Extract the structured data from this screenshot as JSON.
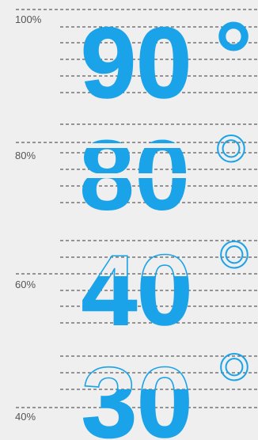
{
  "accent_color": "#1aa3e8",
  "background_color": "#efefef",
  "line_color": "#3a3a3a",
  "label_color": "#555555",
  "labels": [
    "100%",
    "80%",
    "60%",
    "40%"
  ],
  "samples": [
    {
      "value": "90",
      "symbol": "°",
      "fill_level": "full",
      "symbol_style": "filled"
    },
    {
      "value": "80",
      "symbol": "°",
      "fill_level": "upper-cut",
      "symbol_style": "outlined"
    },
    {
      "value": "40",
      "symbol": "°",
      "fill_level": "lower-partial",
      "symbol_style": "outlined"
    },
    {
      "value": "30",
      "symbol": "°",
      "fill_level": "bottom-partial",
      "symbol_style": "outlined"
    }
  ]
}
